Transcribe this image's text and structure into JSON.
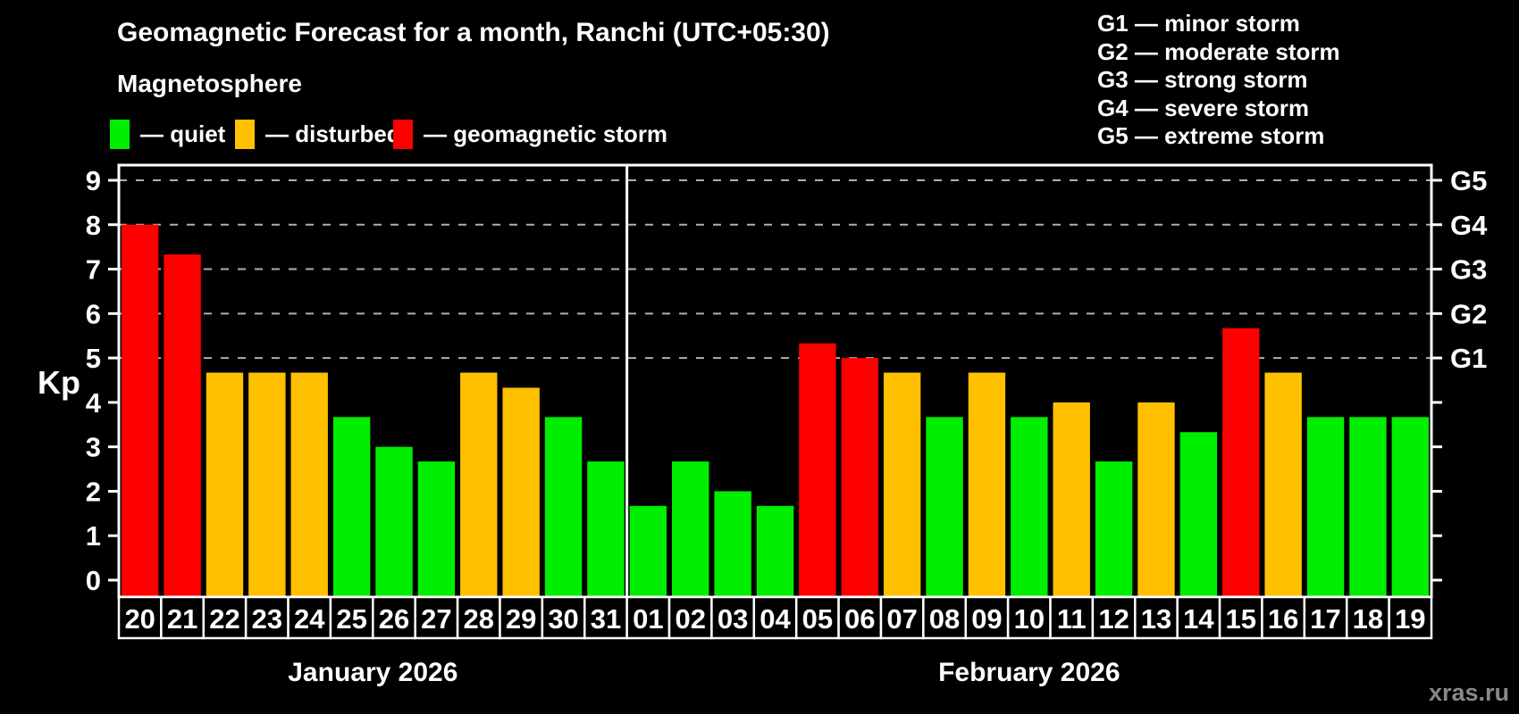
{
  "header": {
    "title": "Geomagnetic Forecast for a month, Ranchi (UTC+05:30)",
    "subtitle": "Magnetosphere"
  },
  "legend": {
    "items": [
      {
        "key": "quiet",
        "label": "— quiet",
        "color": "#00ee00"
      },
      {
        "key": "disturbed",
        "label": "— disturbed",
        "color": "#ffc000"
      },
      {
        "key": "storm",
        "label": "— geomagnetic storm",
        "color": "#ff0000"
      }
    ]
  },
  "g_legend": {
    "lines": [
      "G1 — minor storm",
      "G2 — moderate storm",
      "G3 — strong storm",
      "G4 — severe storm",
      "G5 — extreme storm"
    ]
  },
  "watermark": "xras.ru",
  "chart_data": {
    "type": "bar",
    "title": "Geomagnetic Forecast for a month, Ranchi (UTC+05:30)",
    "ylabel": "Kp",
    "ylim": [
      0,
      9
    ],
    "yticks": [
      0,
      1,
      2,
      3,
      4,
      5,
      6,
      7,
      8,
      9
    ],
    "grid": "horizontal dashed at G-storm levels",
    "gridlines_at_kp": [
      5,
      6,
      7,
      8,
      9
    ],
    "gridline_color": "#b0b0b0",
    "axis_color": "#ffffff",
    "background_color": "#000000",
    "status_colors": {
      "quiet": "#00ee00",
      "disturbed": "#ffc000",
      "storm": "#ff0000"
    },
    "right_axis": {
      "ticks_at_kp": [
        0,
        1,
        2,
        3,
        4,
        5,
        6,
        7,
        8,
        9
      ],
      "labels": [
        {
          "kp": 5,
          "label": "G1"
        },
        {
          "kp": 6,
          "label": "G2"
        },
        {
          "kp": 7,
          "label": "G3"
        },
        {
          "kp": 8,
          "label": "G4"
        },
        {
          "kp": 9,
          "label": "G5"
        }
      ]
    },
    "months": [
      {
        "label": "January 2026",
        "days": [
          {
            "date": "20",
            "kp": 8.0,
            "status": "storm"
          },
          {
            "date": "21",
            "kp": 7.33,
            "status": "storm"
          },
          {
            "date": "22",
            "kp": 4.67,
            "status": "disturbed"
          },
          {
            "date": "23",
            "kp": 4.67,
            "status": "disturbed"
          },
          {
            "date": "24",
            "kp": 4.67,
            "status": "disturbed"
          },
          {
            "date": "25",
            "kp": 3.67,
            "status": "quiet"
          },
          {
            "date": "26",
            "kp": 3.0,
            "status": "quiet"
          },
          {
            "date": "27",
            "kp": 2.67,
            "status": "quiet"
          },
          {
            "date": "28",
            "kp": 4.67,
            "status": "disturbed"
          },
          {
            "date": "29",
            "kp": 4.33,
            "status": "disturbed"
          },
          {
            "date": "30",
            "kp": 3.67,
            "status": "quiet"
          },
          {
            "date": "31",
            "kp": 2.67,
            "status": "quiet"
          }
        ]
      },
      {
        "label": "February 2026",
        "days": [
          {
            "date": "01",
            "kp": 1.67,
            "status": "quiet"
          },
          {
            "date": "02",
            "kp": 2.67,
            "status": "quiet"
          },
          {
            "date": "03",
            "kp": 2.0,
            "status": "quiet"
          },
          {
            "date": "04",
            "kp": 1.67,
            "status": "quiet"
          },
          {
            "date": "05",
            "kp": 5.33,
            "status": "storm"
          },
          {
            "date": "06",
            "kp": 5.0,
            "status": "storm"
          },
          {
            "date": "07",
            "kp": 4.67,
            "status": "disturbed"
          },
          {
            "date": "08",
            "kp": 3.67,
            "status": "quiet"
          },
          {
            "date": "09",
            "kp": 4.67,
            "status": "disturbed"
          },
          {
            "date": "10",
            "kp": 3.67,
            "status": "quiet"
          },
          {
            "date": "11",
            "kp": 4.0,
            "status": "disturbed"
          },
          {
            "date": "12",
            "kp": 2.67,
            "status": "quiet"
          },
          {
            "date": "13",
            "kp": 4.0,
            "status": "disturbed"
          },
          {
            "date": "14",
            "kp": 3.33,
            "status": "quiet"
          },
          {
            "date": "15",
            "kp": 5.67,
            "status": "storm"
          },
          {
            "date": "16",
            "kp": 4.67,
            "status": "disturbed"
          },
          {
            "date": "17",
            "kp": 3.67,
            "status": "quiet"
          },
          {
            "date": "18",
            "kp": 3.67,
            "status": "quiet"
          },
          {
            "date": "19",
            "kp": 3.67,
            "status": "quiet"
          }
        ]
      }
    ]
  }
}
